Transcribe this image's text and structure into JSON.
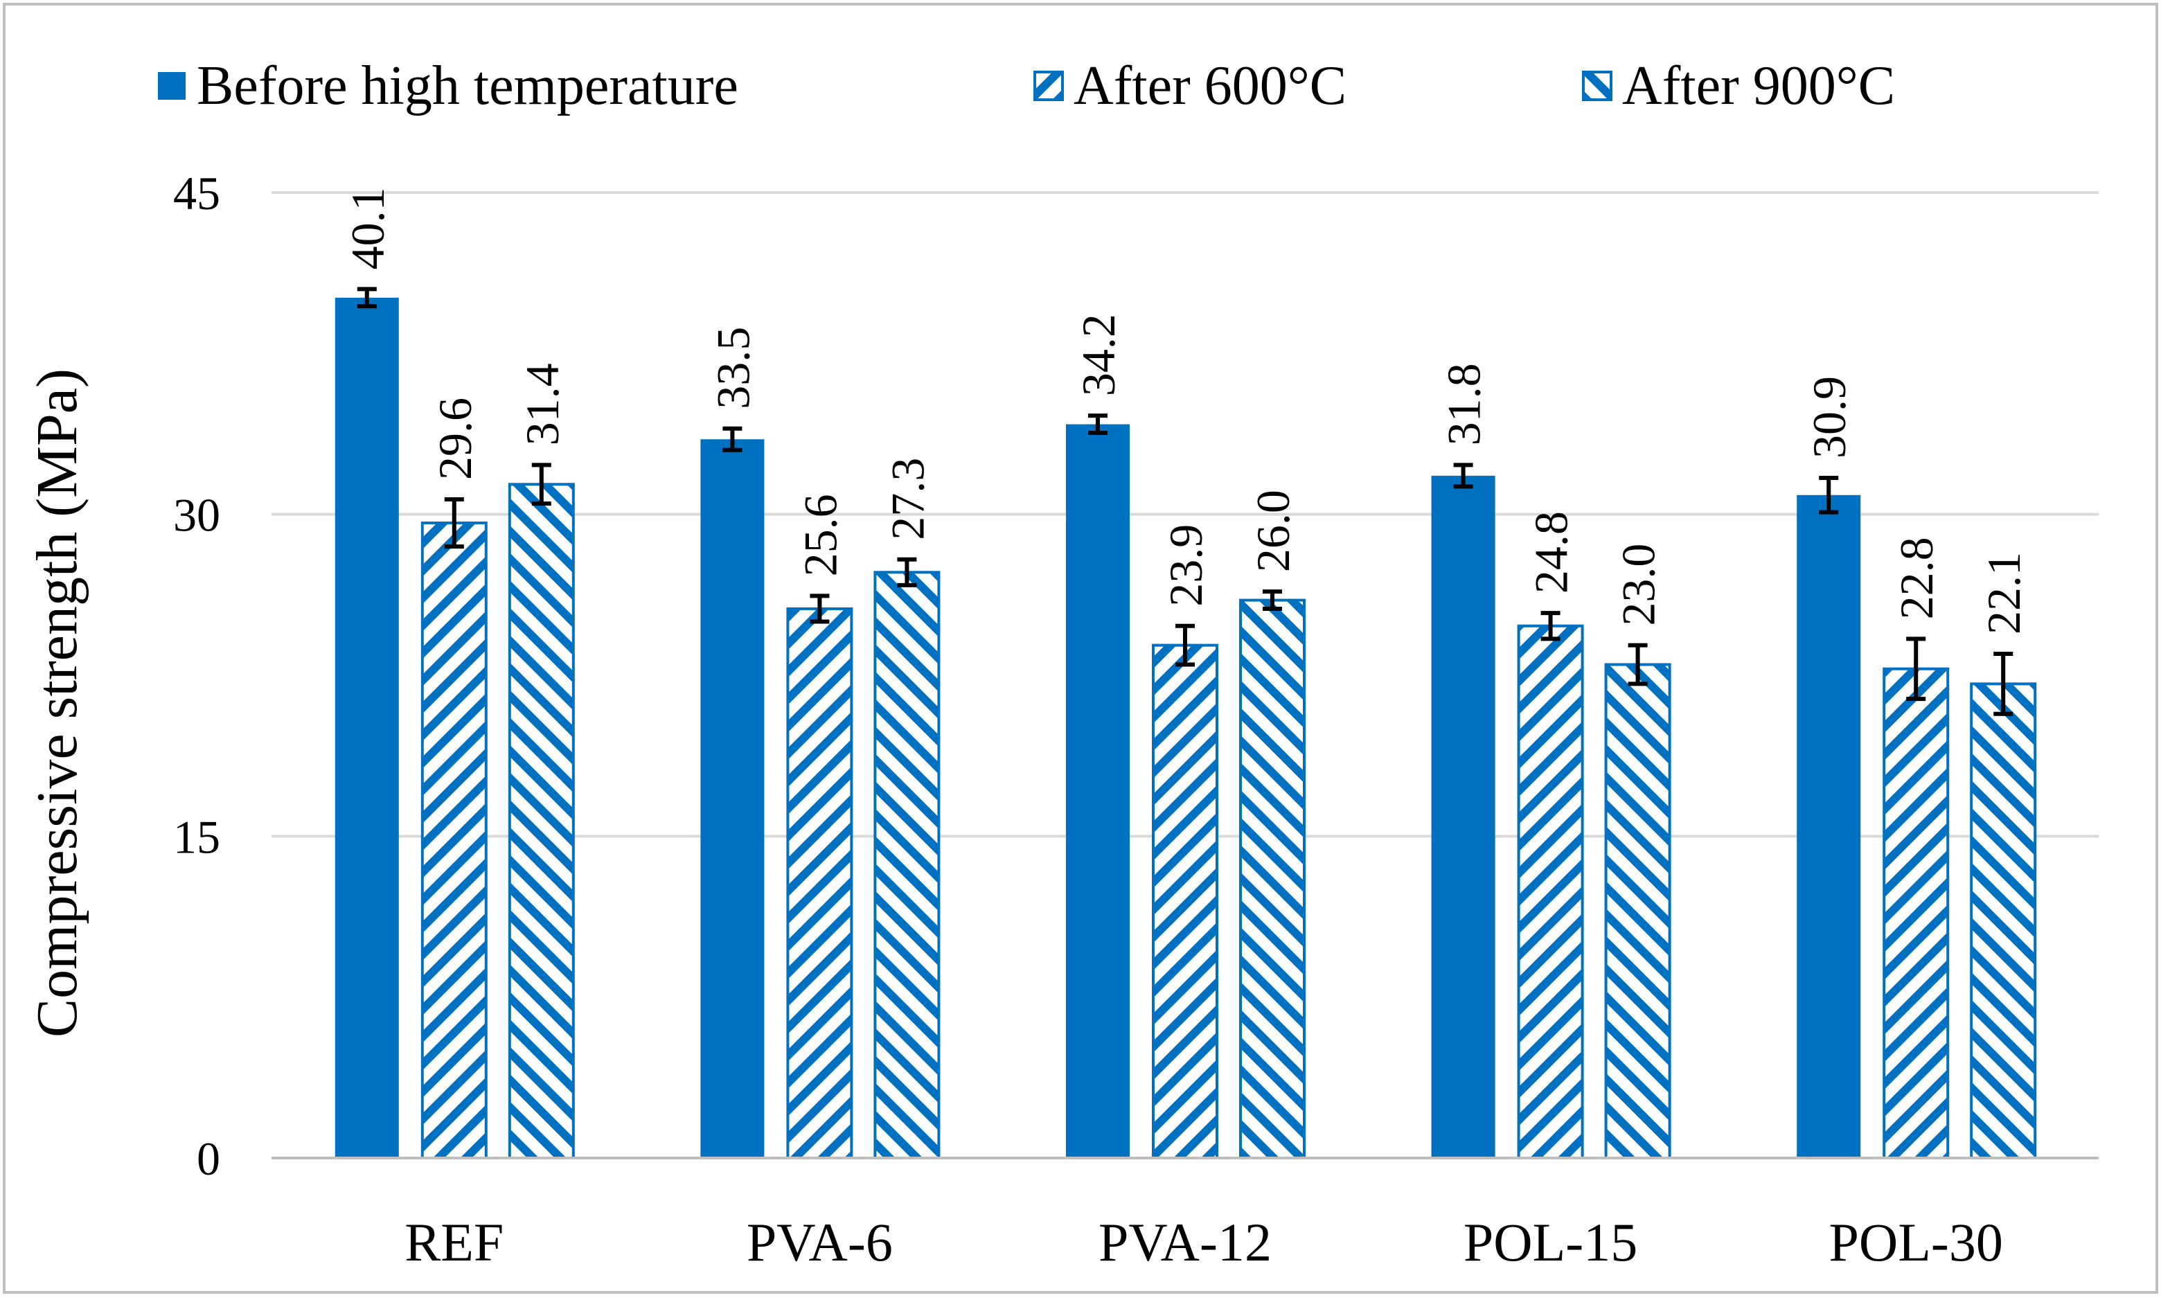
{
  "chart_data": {
    "type": "bar",
    "title": "",
    "xlabel": "",
    "ylabel": "Compressive strength (MPa)",
    "ylim": [
      0,
      45
    ],
    "yticks": [
      0,
      15,
      30,
      45
    ],
    "grid": true,
    "legend_position": "top",
    "categories": [
      "REF",
      "PVA-6",
      "PVA-12",
      "POL-15",
      "POL-30"
    ],
    "series": [
      {
        "name": "Before high temperature",
        "pattern": "solid",
        "values": [
          40.1,
          33.5,
          34.2,
          31.8,
          30.9
        ],
        "labels": [
          "40.1",
          "33.5",
          "34.2",
          "31.8",
          "30.9"
        ],
        "errors": [
          0.4,
          0.5,
          0.4,
          0.5,
          0.8
        ]
      },
      {
        "name": "After 600°C",
        "pattern": "diagonal-up",
        "values": [
          29.6,
          25.6,
          23.9,
          24.8,
          22.8
        ],
        "labels": [
          "29.6",
          "25.6",
          "23.9",
          "24.8",
          "22.8"
        ],
        "errors": [
          1.1,
          0.6,
          0.9,
          0.6,
          1.4
        ]
      },
      {
        "name": "After 900°C",
        "pattern": "diagonal-down",
        "values": [
          31.4,
          27.3,
          26.0,
          23.0,
          22.1
        ],
        "labels": [
          "31.4",
          "27.3",
          "26.0",
          "23.0",
          "22.1"
        ],
        "errors": [
          0.9,
          0.6,
          0.4,
          0.9,
          1.4
        ]
      }
    ],
    "colors": {
      "bar": "#0070C0",
      "grid": "#D9D9D9",
      "axis": "#BFBFBF",
      "error": "#000000",
      "frame": "#BFBFBF"
    }
  }
}
